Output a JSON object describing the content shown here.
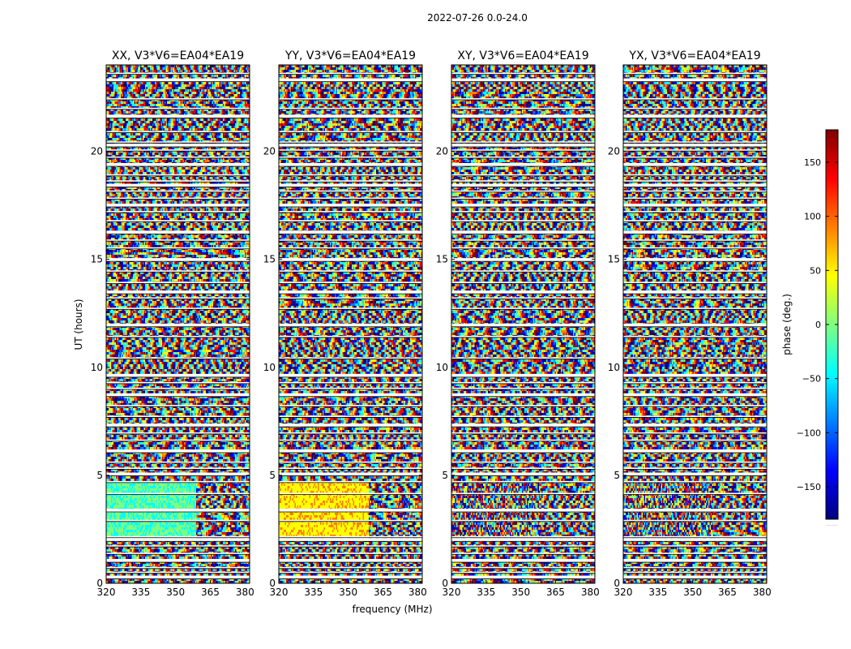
{
  "chart_data": {
    "type": "heatmap",
    "suptitle": "2022-07-26 0.0-24.0",
    "xlabel": "frequency (MHz)",
    "ylabel": "UT (hours)",
    "xlim": [
      320,
      382
    ],
    "ylim": [
      0,
      24
    ],
    "x_ticks": [
      320,
      335,
      350,
      365,
      380
    ],
    "y_ticks": [
      0,
      5,
      10,
      15,
      20
    ],
    "panels": [
      {
        "title": "XX, V3*V6=EA04*EA19",
        "polarization": "XX"
      },
      {
        "title": "YY, V3*V6=EA04*EA19",
        "polarization": "YY"
      },
      {
        "title": "XY, V3*V6=EA04*EA19",
        "polarization": "XY"
      },
      {
        "title": "YX, V3*V6=EA04*EA19",
        "polarization": "YX"
      }
    ],
    "colorbar": {
      "label": "phase (deg.)",
      "range": [
        -180,
        180
      ],
      "ticks": [
        150,
        100,
        50,
        0,
        -50,
        -100,
        -150
      ],
      "tick_labels": [
        "150",
        "100",
        "50",
        "0",
        "−50",
        "−100",
        "−150"
      ],
      "colormap": "jet",
      "footer": "......"
    },
    "flagged_hours": [
      0.28,
      0.5,
      0.72,
      1.05,
      1.38,
      1.72,
      2.02,
      2.15,
      2.9,
      3.38,
      4.15,
      4.7,
      5.05,
      5.32,
      5.6,
      6.12,
      6.62,
      6.95,
      7.32,
      7.72,
      8.22,
      8.72,
      9.02,
      9.28,
      9.62,
      10.42,
      11.42,
      11.95,
      12.72,
      13.2,
      13.48,
      13.92,
      14.45,
      14.98,
      15.52,
      15.88,
      16.25,
      16.78,
      17.2,
      17.5,
      17.82,
      18.15,
      18.42,
      18.62,
      18.9,
      19.38,
      19.72,
      20.05,
      20.28,
      20.42,
      20.9,
      21.62,
      21.98,
      22.42,
      23.3,
      23.6
    ]
  },
  "colors": {
    "axis": "#000000",
    "background": "#ffffff",
    "flag": "#ffffff",
    "jet_stops": [
      "#00007f",
      "#0000ff",
      "#007fff",
      "#00ffff",
      "#7fff7f",
      "#ffff00",
      "#ff7f00",
      "#ff0000",
      "#7f0000"
    ]
  }
}
